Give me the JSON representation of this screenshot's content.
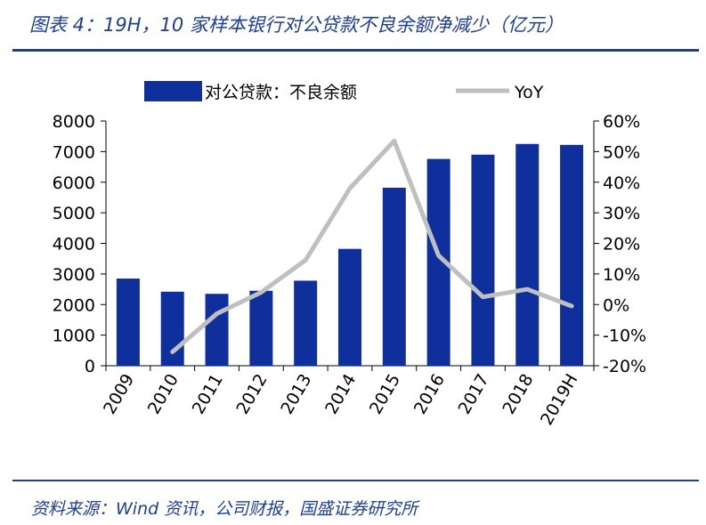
{
  "header": {
    "title": "图表 4：19H，10 家样本银行对公贷款不良余额净减少（亿元）"
  },
  "footer": {
    "source": "资料来源：Wind 资讯，公司财报，国盛证券研究所"
  },
  "colors": {
    "accent": "#1f3f91",
    "bar": "#0f2f9c",
    "line": "#bfbfbf"
  },
  "chart_data": {
    "type": "bar",
    "categories": [
      "2009",
      "2010",
      "2011",
      "2012",
      "2013",
      "2014",
      "2015",
      "2016",
      "2017",
      "2018",
      "2019H"
    ],
    "series": [
      {
        "name": "对公贷款：不良余额",
        "type": "bar",
        "axis": "left",
        "values": [
          2850,
          2420,
          2350,
          2450,
          2780,
          3820,
          5820,
          6760,
          6900,
          7250,
          7220
        ]
      },
      {
        "name": "YoY",
        "type": "line",
        "axis": "right",
        "values": [
          null,
          -15.5,
          -3,
          4,
          14.5,
          38,
          53.5,
          16,
          2.5,
          5,
          -0.5
        ]
      }
    ],
    "y_left": {
      "min": 0,
      "max": 8000,
      "ticks": [
        "0",
        "1000",
        "2000",
        "3000",
        "4000",
        "5000",
        "6000",
        "7000",
        "8000"
      ]
    },
    "y_right": {
      "min": -20,
      "max": 60,
      "ticks": [
        "-20%",
        "-10%",
        "0%",
        "10%",
        "20%",
        "30%",
        "40%",
        "50%",
        "60%"
      ]
    },
    "legend": "top",
    "grid": false
  }
}
